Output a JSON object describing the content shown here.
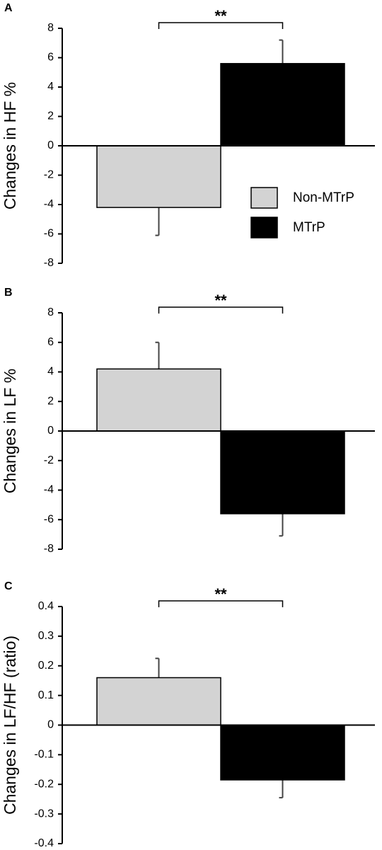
{
  "chart_data": [
    {
      "type": "bar",
      "panel": "A",
      "ylabel": "Changes in HF %",
      "annotation": "**",
      "series": [
        {
          "name": "Non-MTrP",
          "color": "#d3d3d3",
          "values": [
            -4.2
          ],
          "errors": [
            1.9
          ]
        },
        {
          "name": "MTrP",
          "color": "#000000",
          "values": [
            5.6
          ],
          "errors": [
            1.6
          ]
        }
      ],
      "ylim": [
        -8,
        8
      ],
      "yticks": [
        -8,
        -6,
        -4,
        -2,
        0,
        2,
        4,
        6,
        8
      ],
      "legend": "center-right"
    },
    {
      "type": "bar",
      "panel": "B",
      "ylabel": "Changes in LF %",
      "annotation": "**",
      "series": [
        {
          "color": "#d3d3d3",
          "values": [
            4.2
          ],
          "errors": [
            1.8
          ]
        },
        {
          "color": "#000000",
          "values": [
            -5.6
          ],
          "errors": [
            1.5
          ]
        }
      ],
      "ylim": [
        -8,
        8
      ],
      "yticks": [
        -8,
        -6,
        -4,
        -2,
        0,
        2,
        4,
        6,
        8
      ]
    },
    {
      "type": "bar",
      "panel": "C",
      "ylabel": "Changes in LF/HF (ratio)",
      "annotation": "**",
      "series": [
        {
          "color": "#d3d3d3",
          "values": [
            0.16
          ],
          "errors": [
            0.065
          ]
        },
        {
          "color": "#000000",
          "values": [
            -0.185
          ],
          "errors": [
            0.06
          ]
        }
      ],
      "ylim": [
        -0.4,
        0.4
      ],
      "yticks": [
        -0.4,
        -0.3,
        -0.2,
        -0.1,
        0,
        0.1,
        0.2,
        0.3,
        0.4
      ]
    }
  ]
}
